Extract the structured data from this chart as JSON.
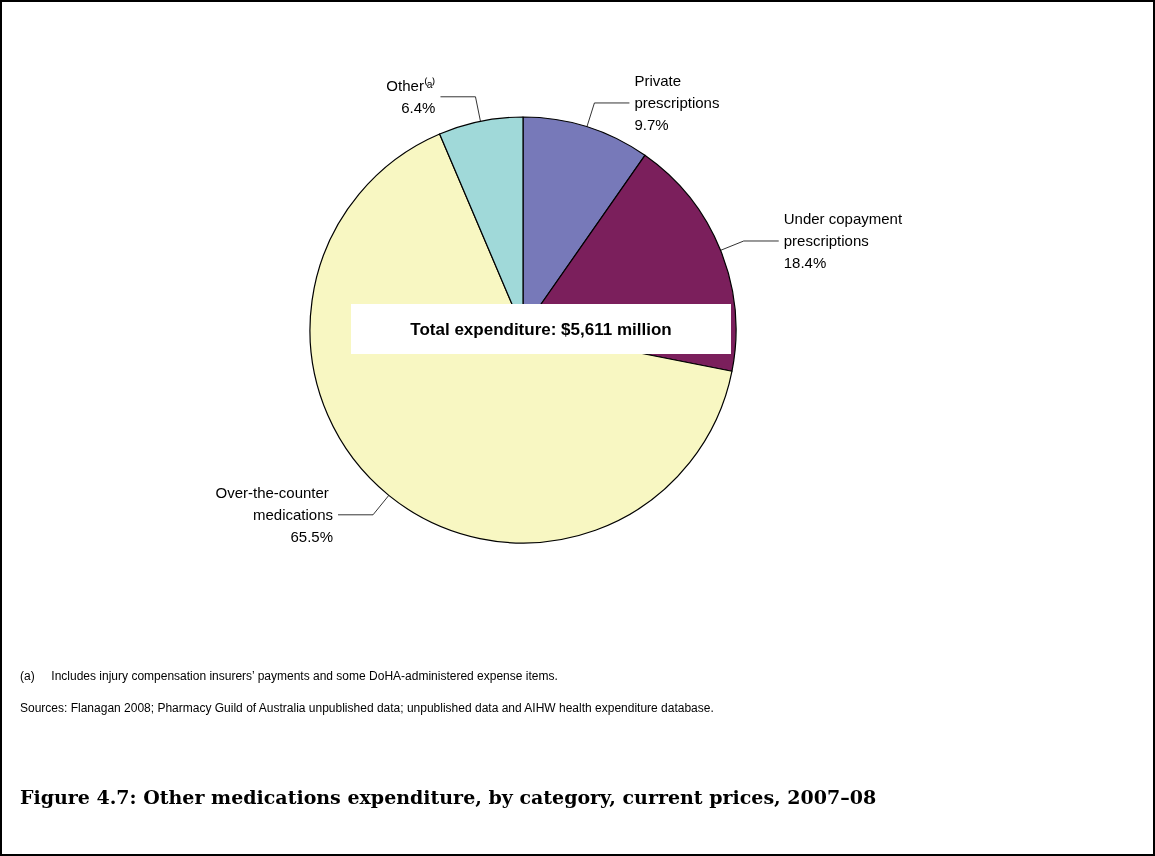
{
  "chart_data": {
    "type": "pie",
    "title": "Figure 4.7: Other medications expenditure, by category, current prices, 2007–08",
    "categories": [
      "Private prescriptions",
      "Under copayment prescriptions",
      "Over-the-counter medications",
      "Other⁽ᵃ⁾"
    ],
    "values": [
      9.7,
      18.4,
      65.5,
      6.4
    ],
    "value_labels": [
      "9.7%",
      "18.4%",
      "65.5%",
      "6.4%"
    ],
    "colors": [
      "#7779b9",
      "#7b1f5c",
      "#f8f7c2",
      "#a0d9d9"
    ],
    "annotations": [
      "Total expenditure: $5,611 million",
      "(a)     Includes injury compensation insurers’ payments and some DoHA-administered expense items.",
      "Sources: Flanagan 2008; Pharmacy Guild of Australia unpublished data; unpublished data and AIHW health expenditure database."
    ],
    "legend": false
  }
}
